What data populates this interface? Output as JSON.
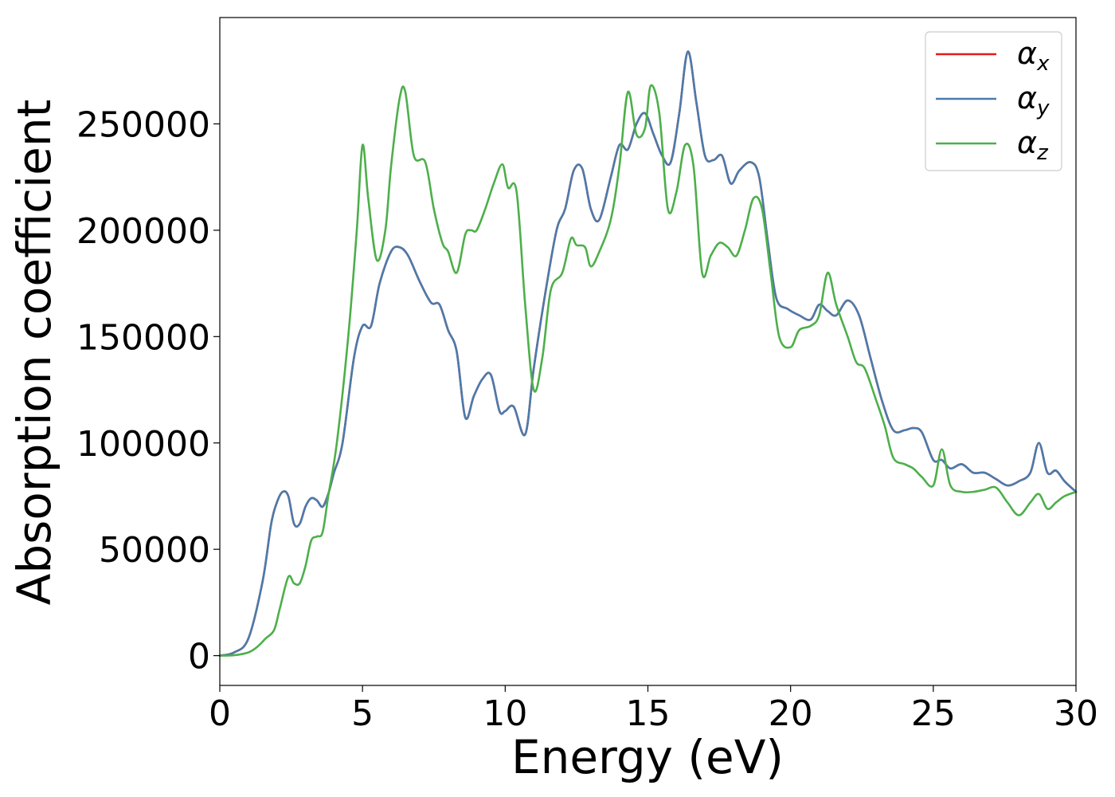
{
  "chart_data": {
    "type": "line",
    "title": "",
    "xlabel": "Energy (eV)",
    "ylabel": "Absorption coefficient",
    "xlim": [
      0,
      30
    ],
    "ylim": [
      -14000,
      300000
    ],
    "xticks": [
      0,
      5,
      10,
      15,
      20,
      25,
      30
    ],
    "xtick_labels": [
      "0",
      "5",
      "10",
      "15",
      "20",
      "25",
      "30"
    ],
    "yticks": [
      0,
      50000,
      100000,
      150000,
      200000,
      250000
    ],
    "ytick_labels": [
      "0",
      "50000",
      "100000",
      "150000",
      "200000",
      "250000"
    ],
    "grid": false,
    "legend_position": "top-right",
    "series": [
      {
        "name": "α_x",
        "legend_base": "α",
        "legend_sub": "x",
        "color": "#e41a1c",
        "x": [
          0,
          0.5,
          1.0,
          1.5,
          1.8,
          2.0,
          2.2,
          2.4,
          2.6,
          2.8,
          3.0,
          3.2,
          3.4,
          3.6,
          3.8,
          4.0,
          4.3,
          4.7,
          5.0,
          5.3,
          5.6,
          6.0,
          6.3,
          6.6,
          7.0,
          7.4,
          7.7,
          8.0,
          8.3,
          8.6,
          8.9,
          9.2,
          9.5,
          9.8,
          10.0,
          10.3,
          10.7,
          11.0,
          11.4,
          11.8,
          12.1,
          12.4,
          12.7,
          13.0,
          13.3,
          13.7,
          14.0,
          14.3,
          14.6,
          14.9,
          15.2,
          15.5,
          15.8,
          16.1,
          16.4,
          16.7,
          17.0,
          17.3,
          17.6,
          17.9,
          18.2,
          18.6,
          18.9,
          19.2,
          19.5,
          19.9,
          20.3,
          20.7,
          21.0,
          21.3,
          21.6,
          22.0,
          22.4,
          22.8,
          23.2,
          23.6,
          24.0,
          24.3,
          24.6,
          25.0,
          25.3,
          25.6,
          26.0,
          26.4,
          26.8,
          27.2,
          27.6,
          28.0,
          28.4,
          28.7,
          29.0,
          29.3,
          29.6,
          30.0
        ],
        "y": [
          0,
          1500,
          8000,
          35000,
          62000,
          72000,
          77000,
          75000,
          62000,
          62000,
          70000,
          74000,
          73000,
          70000,
          76000,
          86000,
          100000,
          140000,
          155000,
          155000,
          175000,
          190000,
          192000,
          188000,
          176000,
          166000,
          165000,
          153000,
          143000,
          112000,
          122000,
          130000,
          132000,
          115000,
          115000,
          117000,
          104000,
          135000,
          170000,
          200000,
          210000,
          228000,
          229000,
          210000,
          205000,
          225000,
          240000,
          238000,
          250000,
          255000,
          245000,
          235000,
          232000,
          255000,
          284000,
          260000,
          235000,
          233000,
          235000,
          222000,
          228000,
          232000,
          225000,
          195000,
          168000,
          163000,
          160000,
          158000,
          165000,
          162000,
          160000,
          167000,
          160000,
          140000,
          120000,
          106000,
          106000,
          107000,
          105000,
          92000,
          92000,
          88000,
          90000,
          86000,
          86000,
          83000,
          80000,
          82000,
          86000,
          100000,
          86000,
          87000,
          82000,
          77000
        ]
      },
      {
        "name": "α_y",
        "legend_base": "α",
        "legend_sub": "y",
        "color": "#4a7bac",
        "x": [
          0,
          0.5,
          1.0,
          1.5,
          1.8,
          2.0,
          2.2,
          2.4,
          2.6,
          2.8,
          3.0,
          3.2,
          3.4,
          3.6,
          3.8,
          4.0,
          4.3,
          4.7,
          5.0,
          5.3,
          5.6,
          6.0,
          6.3,
          6.6,
          7.0,
          7.4,
          7.7,
          8.0,
          8.3,
          8.6,
          8.9,
          9.2,
          9.5,
          9.8,
          10.0,
          10.3,
          10.7,
          11.0,
          11.4,
          11.8,
          12.1,
          12.4,
          12.7,
          13.0,
          13.3,
          13.7,
          14.0,
          14.3,
          14.6,
          14.9,
          15.2,
          15.5,
          15.8,
          16.1,
          16.4,
          16.7,
          17.0,
          17.3,
          17.6,
          17.9,
          18.2,
          18.6,
          18.9,
          19.2,
          19.5,
          19.9,
          20.3,
          20.7,
          21.0,
          21.3,
          21.6,
          22.0,
          22.4,
          22.8,
          23.2,
          23.6,
          24.0,
          24.3,
          24.6,
          25.0,
          25.3,
          25.6,
          26.0,
          26.4,
          26.8,
          27.2,
          27.6,
          28.0,
          28.4,
          28.7,
          29.0,
          29.3,
          29.6,
          30.0
        ],
        "y": [
          0,
          1500,
          8000,
          35000,
          62000,
          72000,
          77000,
          75000,
          62000,
          62000,
          70000,
          74000,
          73000,
          70000,
          76000,
          86000,
          100000,
          140000,
          155000,
          155000,
          175000,
          190000,
          192000,
          188000,
          176000,
          166000,
          165000,
          153000,
          143000,
          112000,
          122000,
          130000,
          132000,
          115000,
          115000,
          117000,
          104000,
          135000,
          170000,
          200000,
          210000,
          228000,
          229000,
          210000,
          205000,
          225000,
          240000,
          238000,
          250000,
          255000,
          245000,
          235000,
          232000,
          255000,
          284000,
          260000,
          235000,
          233000,
          235000,
          222000,
          228000,
          232000,
          225000,
          195000,
          168000,
          163000,
          160000,
          158000,
          165000,
          162000,
          160000,
          167000,
          160000,
          140000,
          120000,
          106000,
          106000,
          107000,
          105000,
          92000,
          92000,
          88000,
          90000,
          86000,
          86000,
          83000,
          80000,
          82000,
          86000,
          100000,
          86000,
          87000,
          82000,
          77000
        ]
      },
      {
        "name": "α_z",
        "legend_base": "α",
        "legend_sub": "z",
        "color": "#4daf4a",
        "x": [
          0,
          0.5,
          1.0,
          1.3,
          1.6,
          1.9,
          2.1,
          2.4,
          2.6,
          2.8,
          3.0,
          3.2,
          3.4,
          3.6,
          3.8,
          4.1,
          4.5,
          4.8,
          5.0,
          5.2,
          5.5,
          5.8,
          6.0,
          6.3,
          6.5,
          6.8,
          7.2,
          7.5,
          7.8,
          8.0,
          8.3,
          8.6,
          8.8,
          9.0,
          9.3,
          9.6,
          9.9,
          10.1,
          10.4,
          10.7,
          11.0,
          11.3,
          11.6,
          12.0,
          12.3,
          12.5,
          12.8,
          13.0,
          13.3,
          13.7,
          14.0,
          14.3,
          14.6,
          14.9,
          15.1,
          15.4,
          15.7,
          16.0,
          16.3,
          16.6,
          16.9,
          17.2,
          17.5,
          17.8,
          18.1,
          18.4,
          18.7,
          19.0,
          19.3,
          19.6,
          20.0,
          20.3,
          20.7,
          21.0,
          21.3,
          21.6,
          22.0,
          22.3,
          22.6,
          23.0,
          23.3,
          23.6,
          24.0,
          24.3,
          24.6,
          25.0,
          25.3,
          25.6,
          26.0,
          26.4,
          26.8,
          27.2,
          27.6,
          28.0,
          28.4,
          28.7,
          29.0,
          29.3,
          29.6,
          30.0
        ],
        "y": [
          0,
          200,
          1500,
          4000,
          8000,
          12000,
          22000,
          37000,
          34000,
          34000,
          42000,
          54000,
          56000,
          58000,
          75000,
          100000,
          150000,
          200000,
          240000,
          215000,
          186000,
          200000,
          230000,
          262000,
          265000,
          235000,
          232000,
          210000,
          194000,
          190000,
          180000,
          198000,
          200000,
          200000,
          210000,
          222000,
          231000,
          220000,
          218000,
          165000,
          125000,
          140000,
          172000,
          180000,
          196000,
          193000,
          192000,
          183000,
          190000,
          205000,
          230000,
          265000,
          245000,
          248000,
          268000,
          255000,
          210000,
          218000,
          240000,
          230000,
          180000,
          188000,
          194000,
          192000,
          188000,
          200000,
          215000,
          210000,
          180000,
          150000,
          145000,
          153000,
          155000,
          160000,
          180000,
          165000,
          150000,
          138000,
          135000,
          120000,
          108000,
          93000,
          90000,
          88000,
          84000,
          80000,
          97000,
          80000,
          77000,
          77000,
          78000,
          79000,
          72000,
          66000,
          72000,
          76000,
          69000,
          72000,
          75000,
          77000
        ]
      }
    ]
  }
}
